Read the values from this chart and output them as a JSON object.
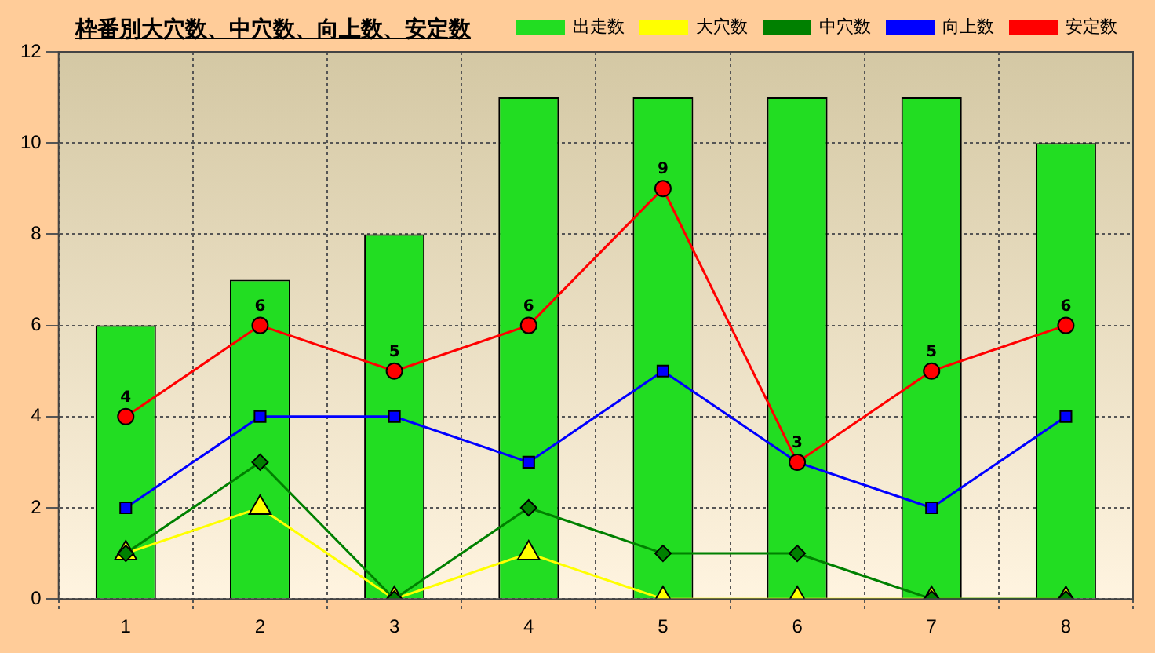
{
  "chart_data": {
    "type": "bar",
    "title": "枠番別大穴数、中穴数、向上数、安定数",
    "categories": [
      "1",
      "2",
      "3",
      "4",
      "5",
      "6",
      "7",
      "8"
    ],
    "ylim": [
      0,
      12
    ],
    "yticks": [
      0,
      2,
      4,
      6,
      8,
      10,
      12
    ],
    "grid": true,
    "legend": "top right",
    "series": [
      {
        "name": "出走数",
        "color": "#22dd22",
        "values": [
          6,
          7,
          8,
          11,
          11,
          11,
          11,
          10
        ]
      },
      {
        "name": "大穴数",
        "type": "line",
        "marker": "triangle",
        "color": "#ffff00",
        "values": [
          1,
          2,
          0,
          1,
          0,
          0,
          0,
          0
        ]
      },
      {
        "name": "中穴数",
        "type": "line",
        "marker": "diamond",
        "color": "#008000",
        "values": [
          1,
          3,
          0,
          2,
          1,
          1,
          0,
          0
        ]
      },
      {
        "name": "向上数",
        "type": "line",
        "marker": "square",
        "color": "#0000ff",
        "values": [
          2,
          4,
          4,
          3,
          5,
          3,
          2,
          4
        ]
      },
      {
        "name": "安定数",
        "type": "line",
        "marker": "circle",
        "color": "#ff0000",
        "values": [
          4,
          6,
          5,
          6,
          9,
          3,
          5,
          6
        ],
        "value_labels": [
          "4",
          "6",
          "5",
          "6",
          "9",
          "3",
          "5",
          "6"
        ]
      }
    ]
  }
}
